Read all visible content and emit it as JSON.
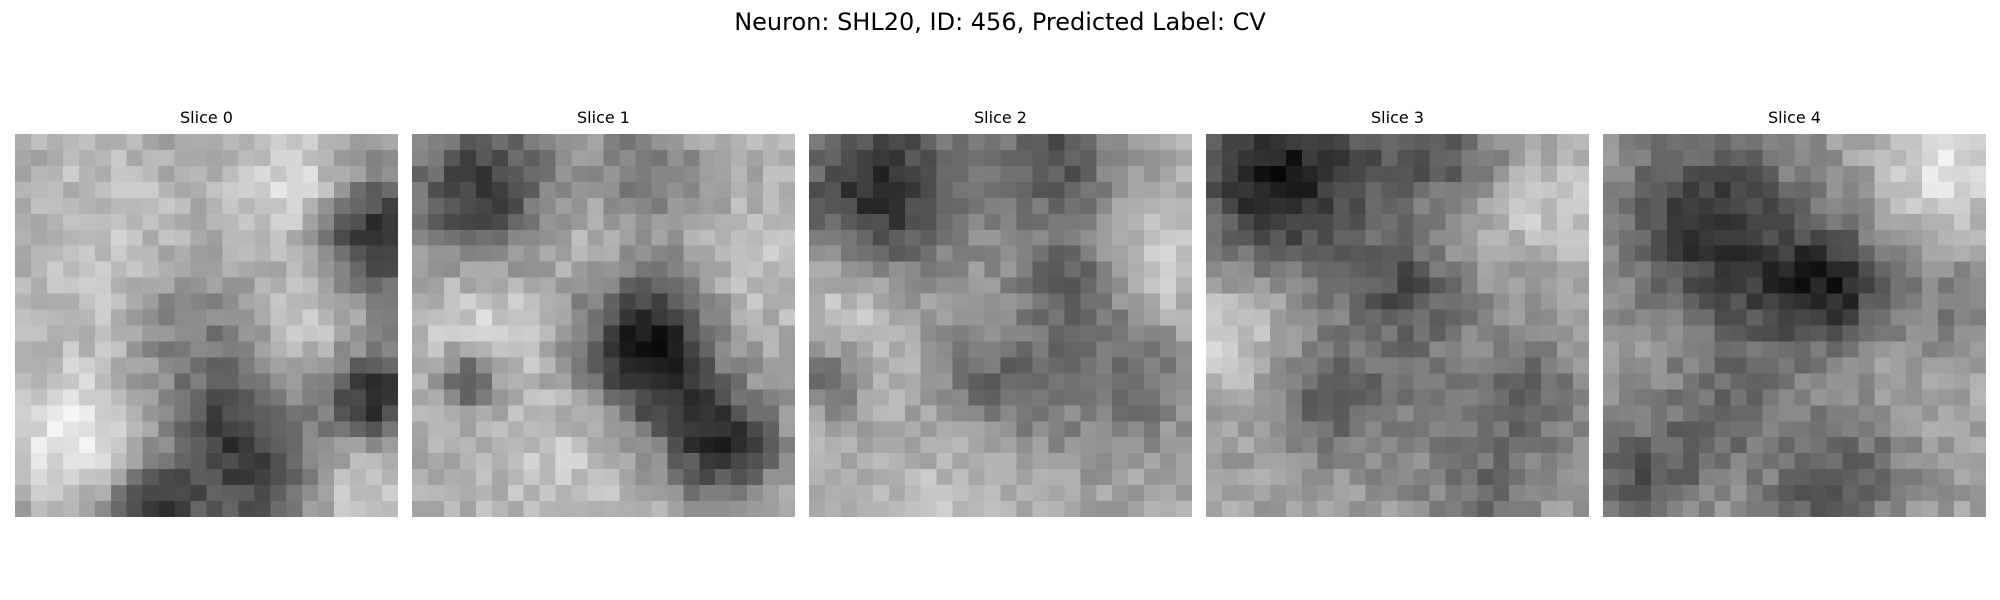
{
  "figure": {
    "title": "Neuron: SHL20, ID: 456, Predicted Label: CV"
  },
  "panels": [
    {
      "title": "Slice 0"
    },
    {
      "title": "Slice 1"
    },
    {
      "title": "Slice 2"
    },
    {
      "title": "Slice 3"
    },
    {
      "title": "Slice 4"
    }
  ],
  "colormap": "gray"
}
